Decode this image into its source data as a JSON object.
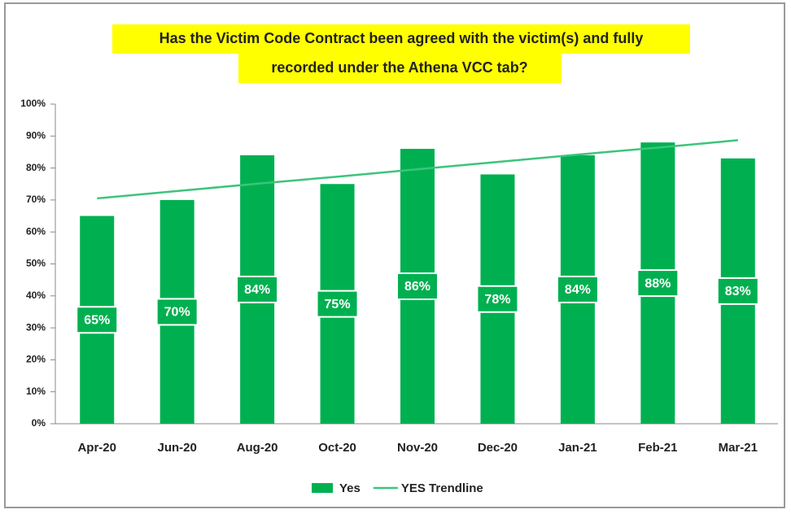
{
  "chart_data": {
    "type": "bar",
    "title_lines": [
      "Has the Victim Code Contract been agreed with the victim(s) and fully",
      "recorded under the Athena VCC tab?"
    ],
    "categories": [
      "Apr-20",
      "Jun-20",
      "Aug-20",
      "Oct-20",
      "Nov-20",
      "Dec-20",
      "Jan-21",
      "Feb-21",
      "Mar-21"
    ],
    "series": [
      {
        "name": "Yes",
        "color": "#00b050",
        "values": [
          65,
          70,
          84,
          75,
          86,
          78,
          84,
          88,
          83
        ],
        "value_labels": [
          "65%",
          "70%",
          "84%",
          "75%",
          "86%",
          "78%",
          "84%",
          "88%",
          "83%"
        ]
      },
      {
        "name": "YES Trendline",
        "type": "line",
        "color": "#3cc47c",
        "values": [
          70.5,
          72.8,
          75.1,
          77.3,
          79.6,
          81.9,
          84.2,
          86.4,
          88.7
        ]
      }
    ],
    "ylim": [
      0,
      100
    ],
    "yticks": [
      {
        "value": 0,
        "label": "0%"
      },
      {
        "value": 10,
        "label": "10%"
      },
      {
        "value": 20,
        "label": "20%"
      },
      {
        "value": 30,
        "label": "30%"
      },
      {
        "value": 40,
        "label": "40%"
      },
      {
        "value": 50,
        "label": "50%"
      },
      {
        "value": 60,
        "label": "60%"
      },
      {
        "value": 70,
        "label": "70%"
      },
      {
        "value": 80,
        "label": "80%"
      },
      {
        "value": 90,
        "label": "90%"
      },
      {
        "value": 100,
        "label": "100%"
      }
    ],
    "legend": "bottom"
  }
}
